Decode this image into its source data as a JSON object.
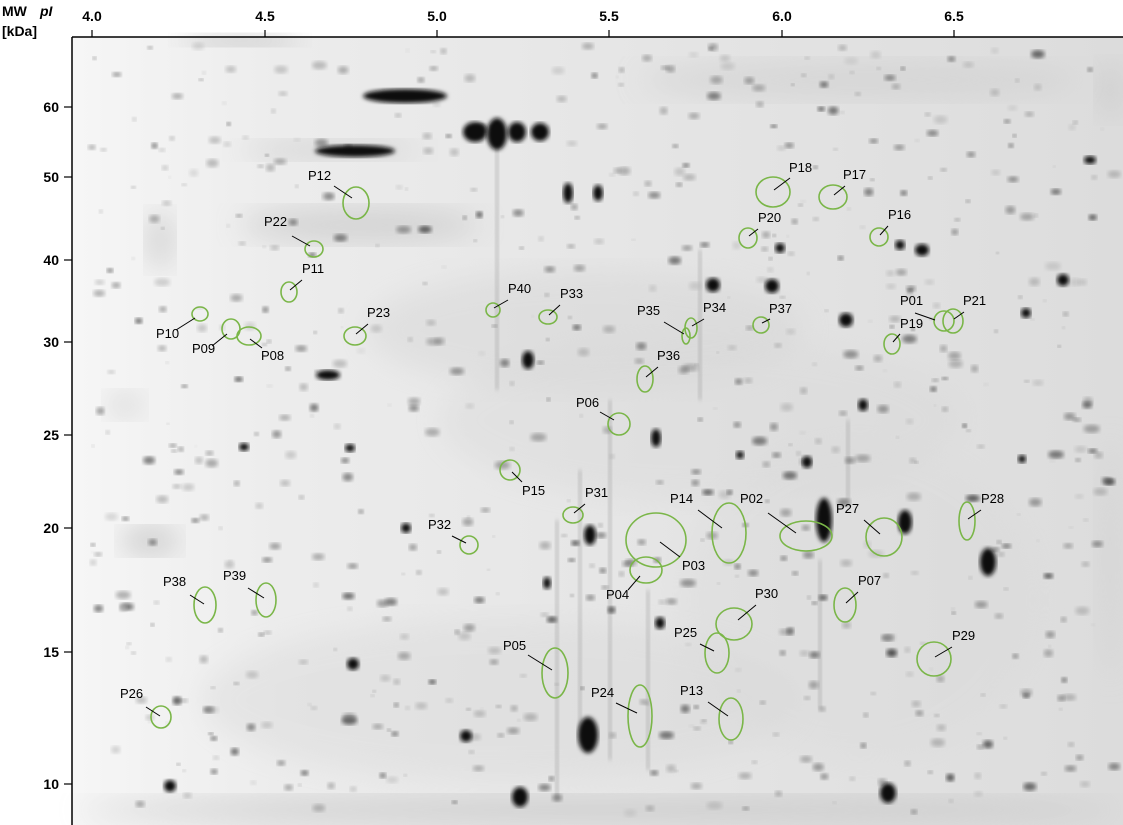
{
  "axes": {
    "x_title": "pI",
    "y_title_line1": "MW",
    "y_title_line2": "[kDa]",
    "x_ticks": [
      "4.0",
      "4.5",
      "5.0",
      "5.5",
      "6.0",
      "6.5"
    ],
    "y_ticks": [
      "60",
      "50",
      "40",
      "30",
      "25",
      "20",
      "15",
      "10"
    ]
  },
  "colors": {
    "outline": "#7ab648",
    "background": "#ffffff",
    "gel": "#e9e9e9"
  },
  "spots": [
    {
      "label": "P01"
    },
    {
      "label": "P02"
    },
    {
      "label": "P03"
    },
    {
      "label": "P04"
    },
    {
      "label": "P05"
    },
    {
      "label": "P06"
    },
    {
      "label": "P07"
    },
    {
      "label": "P08"
    },
    {
      "label": "P09"
    },
    {
      "label": "P10"
    },
    {
      "label": "P11"
    },
    {
      "label": "P12"
    },
    {
      "label": "P13"
    },
    {
      "label": "P14"
    },
    {
      "label": "P15"
    },
    {
      "label": "P16"
    },
    {
      "label": "P17"
    },
    {
      "label": "P18"
    },
    {
      "label": "P19"
    },
    {
      "label": "P20"
    },
    {
      "label": "P21"
    },
    {
      "label": "P22"
    },
    {
      "label": "P23"
    },
    {
      "label": "P24"
    },
    {
      "label": "P25"
    },
    {
      "label": "P26"
    },
    {
      "label": "P27"
    },
    {
      "label": "P28"
    },
    {
      "label": "P29"
    },
    {
      "label": "P30"
    },
    {
      "label": "P31"
    },
    {
      "label": "P32"
    },
    {
      "label": "P33"
    },
    {
      "label": "P34"
    },
    {
      "label": "P35"
    },
    {
      "label": "P36"
    },
    {
      "label": "P37"
    },
    {
      "label": "P38"
    },
    {
      "label": "P39"
    },
    {
      "label": "P40"
    }
  ]
}
